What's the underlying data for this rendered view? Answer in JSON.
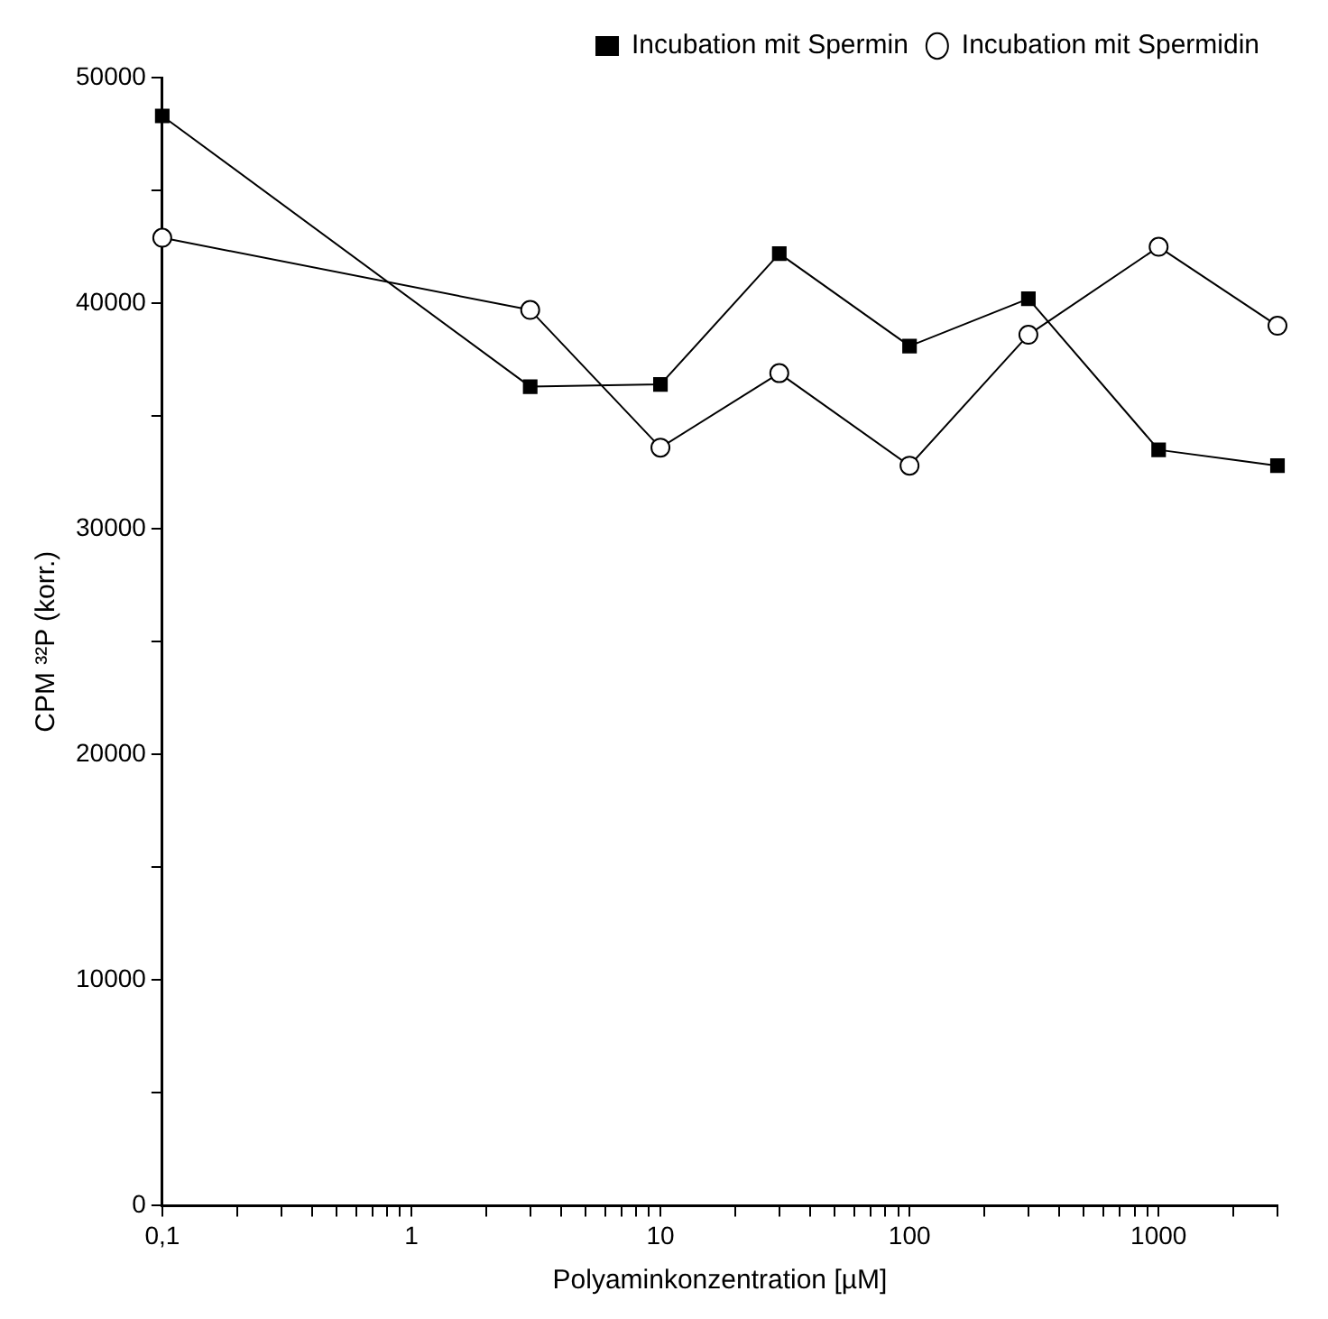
{
  "chart_data": {
    "type": "line",
    "xlabel": "Polyaminkonzentration [µM]",
    "ylabel": "CPM ³²P (korr.)",
    "x": [
      0.1,
      3,
      10,
      30,
      100,
      300,
      1000,
      3000
    ],
    "series": [
      {
        "name": "Incubation mit Spermin",
        "color": "#000000",
        "marker": "square",
        "values": [
          48300,
          36300,
          36400,
          42200,
          38100,
          40200,
          33500,
          32800
        ]
      },
      {
        "name": "Incubation mit Spermidin",
        "color": "#000000",
        "marker": "circle",
        "values": [
          42900,
          39700,
          33600,
          36900,
          32800,
          38600,
          42500,
          39000
        ]
      }
    ],
    "log": "x",
    "xlim": [
      0.1,
      3000
    ],
    "xticks": [
      {
        "value": 0.1,
        "label": "0,1"
      },
      {
        "value": 0.2,
        "label": null
      },
      {
        "value": 0.3,
        "label": null
      },
      {
        "value": 0.4,
        "label": null
      },
      {
        "value": 0.5,
        "label": null
      },
      {
        "value": 0.6,
        "label": null
      },
      {
        "value": 0.7,
        "label": null
      },
      {
        "value": 0.8,
        "label": null
      },
      {
        "value": 0.9,
        "label": null
      },
      1,
      {
        "value": 2,
        "label": null
      },
      {
        "value": 3,
        "label": null
      },
      {
        "value": 4,
        "label": null
      },
      {
        "value": 5,
        "label": null
      },
      {
        "value": 6,
        "label": null
      },
      {
        "value": 7,
        "label": null
      },
      {
        "value": 8,
        "label": null
      },
      {
        "value": 9,
        "label": null
      },
      10,
      {
        "value": 20,
        "label": null
      },
      {
        "value": 30,
        "label": null
      },
      {
        "value": 40,
        "label": null
      },
      {
        "value": 50,
        "label": null
      },
      {
        "value": 60,
        "label": null
      },
      {
        "value": 70,
        "label": null
      },
      {
        "value": 80,
        "label": null
      },
      {
        "value": 90,
        "label": null
      },
      100,
      {
        "value": 200,
        "label": null
      },
      {
        "value": 300,
        "label": null
      },
      {
        "value": 400,
        "label": null
      },
      {
        "value": 500,
        "label": null
      },
      {
        "value": 600,
        "label": null
      },
      {
        "value": 700,
        "label": null
      },
      {
        "value": 800,
        "label": null
      },
      {
        "value": 900,
        "label": null
      },
      1000,
      {
        "value": 2000,
        "label": null
      },
      {
        "value": 3000,
        "label": null
      }
    ],
    "ylim": [
      0,
      50000
    ],
    "yticks": [
      0,
      {
        "value": 5000,
        "label": null
      },
      10000,
      {
        "value": 15000,
        "label": null
      },
      20000,
      {
        "value": 25000,
        "label": null
      },
      30000,
      {
        "value": 35000,
        "label": null
      },
      40000,
      {
        "value": 45000,
        "label": null
      },
      50000
    ],
    "grid": false,
    "legend": "top right"
  }
}
